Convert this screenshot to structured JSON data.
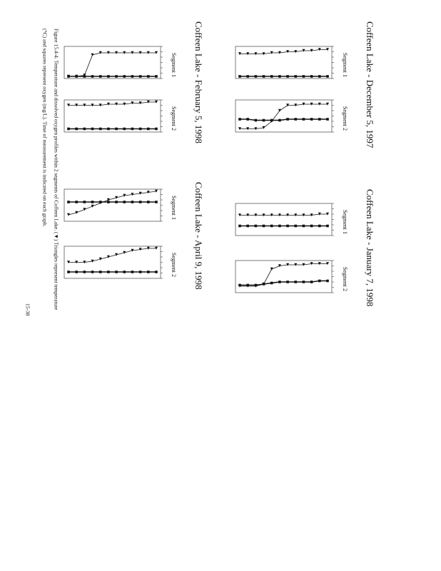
{
  "figures": [
    {
      "title": "Coffeen Lake - December 5, 1997",
      "panels": [
        {
          "label": "Segment 1",
          "triangles": [
            27,
            27,
            26,
            26,
            25,
            25,
            24,
            24,
            23,
            23,
            23,
            23
          ],
          "squares": [
            2,
            2,
            2,
            2,
            2,
            2,
            2,
            2,
            2,
            2,
            2,
            2
          ]
        },
        {
          "label": "Segment 2",
          "triangles": [
            26,
            26,
            26,
            26,
            25,
            25,
            20,
            10,
            4,
            3,
            3,
            3
          ],
          "squares": [
            12,
            12,
            12,
            12,
            12,
            12,
            11,
            11,
            11,
            11,
            12,
            12
          ]
        }
      ]
    },
    {
      "title": "Coffeen Lake - January 7, 1998",
      "panels": [
        {
          "label": "Segment 1",
          "triangles": [
            20,
            20,
            19,
            19,
            19,
            19,
            19,
            19,
            19,
            19,
            19,
            19
          ],
          "squares": [
            9,
            9,
            9,
            9,
            9,
            9,
            9,
            9,
            9,
            9,
            9,
            9
          ]
        },
        {
          "label": "Segment 2",
          "triangles": [
            27,
            27,
            27,
            26,
            26,
            26,
            25,
            22,
            8,
            6,
            6,
            6
          ],
          "squares": [
            11,
            11,
            10,
            10,
            10,
            10,
            10,
            9,
            8,
            7,
            7,
            7
          ]
        }
      ]
    },
    {
      "title": "Coffeen Lake - February 5, 1998",
      "panels": [
        {
          "label": "Segment 1",
          "triangles": [
            24,
            24,
            24,
            24,
            24,
            24,
            24,
            24,
            22,
            3,
            2,
            2
          ],
          "squares": [
            2,
            2,
            2,
            2,
            2,
            2,
            2,
            2,
            2,
            2,
            2,
            2
          ]
        },
        {
          "label": "Segment 2",
          "triangles": [
            28,
            28,
            27,
            27,
            26,
            26,
            26,
            25,
            25,
            25,
            25,
            25
          ],
          "squares": [
            3,
            3,
            3,
            3,
            3,
            3,
            3,
            3,
            3,
            3,
            3,
            3
          ]
        }
      ]
    },
    {
      "title": "Coffeen Lake - April 9, 1998",
      "panels": [
        {
          "label": "Segment 1",
          "triangles": [
            28,
            27,
            26,
            25,
            24,
            22,
            20,
            17,
            14,
            11,
            8,
            6
          ],
          "squares": [
            18,
            18,
            18,
            18,
            18,
            18,
            18,
            18,
            18,
            18,
            18,
            18
          ]
        },
        {
          "label": "Segment 2",
          "triangles": [
            28,
            28,
            27,
            26,
            24,
            22,
            20,
            18,
            16,
            15,
            15,
            15
          ],
          "squares": [
            6,
            6,
            6,
            6,
            6,
            6,
            6,
            6,
            6,
            6,
            6,
            6
          ]
        }
      ]
    }
  ],
  "value_range": [
    30,
    0
  ],
  "caption": [
    "Figure 15.4-4. Temperature and dissolved oxygen profiles within 2 segments of Coffeen Lake. (▼) Triangles represent temperature",
    "(°C) and squares represent oxygen (mg/L). Time of measurement is indicated on each graph."
  ],
  "page_number": "15-38"
}
